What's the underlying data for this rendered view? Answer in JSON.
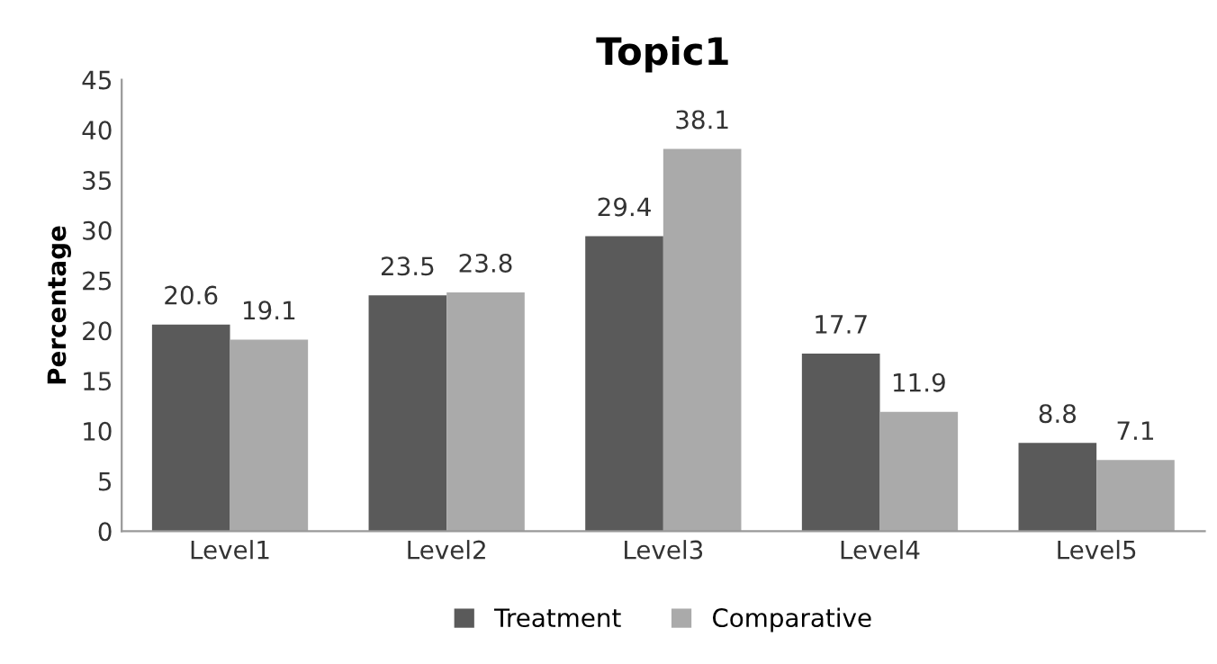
{
  "chart_data": {
    "type": "bar",
    "title": "Topic1",
    "ylabel": "Percentage",
    "categories": [
      "Level1",
      "Level2",
      "Level3",
      "Level4",
      "Level5"
    ],
    "series": [
      {
        "name": "Treatment",
        "color": "#5a5a5a",
        "values": [
          20.6,
          23.5,
          29.4,
          17.7,
          8.8
        ]
      },
      {
        "name": "Comparative",
        "color": "#aaaaaa",
        "values": [
          19.1,
          23.8,
          38.1,
          11.9,
          7.1
        ]
      }
    ],
    "ylim": [
      0,
      45
    ],
    "yticks": [
      0,
      5,
      10,
      15,
      20,
      25,
      30,
      35,
      40,
      45
    ],
    "grid": false,
    "legend": "bottom",
    "data_labels": true
  }
}
